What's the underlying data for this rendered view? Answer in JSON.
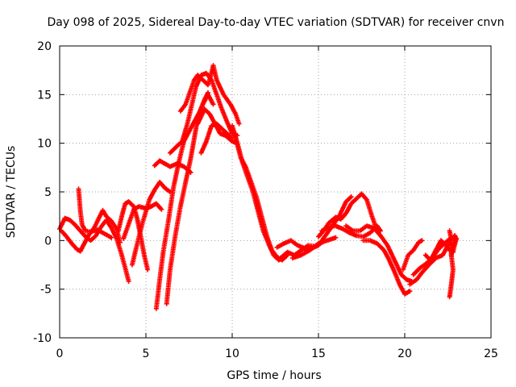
{
  "chart_data": {
    "type": "scatter",
    "title": "Day 098 of 2025, Sidereal Day-to-day VTEC variation (SDTVAR) for receiver cnvn",
    "xlabel": "GPS time / hours",
    "ylabel": "SDTVAR / TECUs",
    "xlim": [
      0,
      25
    ],
    "ylim": [
      -10,
      20
    ],
    "xticks": [
      "0",
      "5",
      "10",
      "15",
      "20",
      "25"
    ],
    "yticks": [
      "-10",
      "-5",
      "0",
      "5",
      "10",
      "15",
      "20"
    ],
    "grid": true,
    "marker": "+",
    "series": [
      {
        "name": "SDTVAR",
        "color": "#ff0000",
        "tracks": [
          [
            [
              0.0,
              1.2
            ],
            [
              0.3,
              2.3
            ],
            [
              0.6,
              2.1
            ],
            [
              0.9,
              1.6
            ],
            [
              1.2,
              1.0
            ],
            [
              1.5,
              0.4
            ],
            [
              1.8,
              0.0
            ],
            [
              2.1,
              0.5
            ],
            [
              2.4,
              1.4
            ],
            [
              2.7,
              2.1
            ],
            [
              3.0,
              1.3
            ],
            [
              3.3,
              0.2
            ],
            [
              3.6,
              -1.5
            ],
            [
              3.9,
              -3.5
            ],
            [
              4.0,
              -4.2
            ]
          ],
          [
            [
              0.1,
              1.0
            ],
            [
              0.4,
              0.4
            ],
            [
              0.7,
              -0.3
            ],
            [
              1.0,
              -0.9
            ],
            [
              1.2,
              -1.1
            ],
            [
              1.4,
              -0.4
            ],
            [
              1.7,
              0.6
            ],
            [
              2.0,
              1.3
            ],
            [
              2.3,
              2.4
            ],
            [
              2.5,
              3.1
            ],
            [
              2.7,
              2.5
            ],
            [
              3.0,
              2.0
            ],
            [
              3.3,
              1.2
            ],
            [
              3.5,
              -0.2
            ]
          ],
          [
            [
              1.1,
              5.3
            ],
            [
              1.2,
              3.0
            ],
            [
              1.3,
              1.6
            ],
            [
              1.5,
              1.0
            ],
            [
              1.8,
              0.9
            ],
            [
              2.2,
              1.1
            ],
            [
              2.6,
              0.7
            ],
            [
              3.0,
              0.3
            ]
          ],
          [
            [
              3.4,
              1.0
            ],
            [
              3.6,
              2.5
            ],
            [
              3.8,
              3.8
            ],
            [
              4.0,
              4.0
            ],
            [
              4.3,
              3.5
            ],
            [
              4.5,
              2.2
            ],
            [
              4.7,
              0.4
            ],
            [
              4.9,
              -1.5
            ],
            [
              5.1,
              -3.0
            ]
          ],
          [
            [
              3.7,
              0.2
            ],
            [
              4.0,
              1.7
            ],
            [
              4.3,
              3.2
            ],
            [
              4.6,
              3.5
            ],
            [
              5.0,
              3.3
            ],
            [
              5.3,
              3.5
            ],
            [
              5.6,
              3.8
            ],
            [
              5.9,
              3.2
            ]
          ],
          [
            [
              4.2,
              -2.5
            ],
            [
              4.5,
              -0.3
            ],
            [
              4.8,
              1.8
            ],
            [
              5.0,
              3.0
            ],
            [
              5.2,
              4.2
            ],
            [
              5.5,
              5.2
            ],
            [
              5.8,
              6.0
            ],
            [
              6.1,
              5.4
            ],
            [
              6.4,
              5.0
            ]
          ],
          [
            [
              5.6,
              -7.0
            ],
            [
              5.8,
              -4.0
            ],
            [
              6.0,
              -1.2
            ],
            [
              6.3,
              2.0
            ],
            [
              6.6,
              5.5
            ],
            [
              6.9,
              8.0
            ],
            [
              7.2,
              10.2
            ],
            [
              7.5,
              11.2
            ],
            [
              7.8,
              12.2
            ],
            [
              8.1,
              13.2
            ],
            [
              8.4,
              14.5
            ],
            [
              8.6,
              15.2
            ]
          ],
          [
            [
              6.2,
              -6.5
            ],
            [
              6.4,
              -3.0
            ],
            [
              6.7,
              0.5
            ],
            [
              7.0,
              3.5
            ],
            [
              7.3,
              6.0
            ],
            [
              7.6,
              8.5
            ],
            [
              7.8,
              10.5
            ],
            [
              8.0,
              12.5
            ],
            [
              8.3,
              14.0
            ],
            [
              8.6,
              15.0
            ],
            [
              8.9,
              14.0
            ]
          ],
          [
            [
              5.5,
              7.7
            ],
            [
              5.8,
              8.2
            ],
            [
              6.1,
              7.9
            ],
            [
              6.4,
              7.6
            ],
            [
              6.8,
              7.9
            ],
            [
              7.2,
              7.6
            ],
            [
              7.6,
              7.0
            ]
          ],
          [
            [
              6.4,
              9.0
            ],
            [
              6.8,
              9.7
            ],
            [
              7.1,
              10.2
            ],
            [
              7.4,
              12.0
            ],
            [
              7.6,
              13.5
            ],
            [
              7.9,
              15.8
            ],
            [
              8.2,
              17.0
            ],
            [
              8.5,
              17.2
            ],
            [
              8.8,
              16.5
            ],
            [
              9.1,
              15.0
            ],
            [
              9.4,
              13.5
            ],
            [
              9.7,
              12.2
            ],
            [
              10.0,
              11.0
            ],
            [
              10.3,
              10.8
            ]
          ],
          [
            [
              7.0,
              13.3
            ],
            [
              7.3,
              14.0
            ],
            [
              7.6,
              15.5
            ],
            [
              7.8,
              16.5
            ],
            [
              8.0,
              17.0
            ],
            [
              8.3,
              16.5
            ],
            [
              8.6,
              16.0
            ],
            [
              8.8,
              17.2
            ],
            [
              8.9,
              18.0
            ],
            [
              9.1,
              16.5
            ],
            [
              9.5,
              15.0
            ],
            [
              9.9,
              14.0
            ],
            [
              10.2,
              13.0
            ],
            [
              10.4,
              12.0
            ]
          ],
          [
            [
              8.0,
              12.0
            ],
            [
              8.4,
              13.5
            ],
            [
              8.7,
              13.0
            ],
            [
              9.0,
              12.0
            ],
            [
              9.3,
              11.0
            ],
            [
              9.6,
              10.8
            ],
            [
              10.0,
              10.2
            ],
            [
              10.3,
              10.0
            ]
          ],
          [
            [
              8.2,
              9.0
            ],
            [
              8.5,
              10.2
            ],
            [
              8.8,
              11.8
            ],
            [
              9.1,
              12.0
            ],
            [
              9.4,
              11.5
            ],
            [
              9.7,
              11.0
            ],
            [
              10.0,
              10.5
            ]
          ],
          [
            [
              10.0,
              11.8
            ],
            [
              10.3,
              10.0
            ],
            [
              10.6,
              8.0
            ],
            [
              10.9,
              6.5
            ],
            [
              11.2,
              5.0
            ],
            [
              11.5,
              3.0
            ],
            [
              11.8,
              1.0
            ],
            [
              12.1,
              -0.3
            ],
            [
              12.4,
              -1.5
            ],
            [
              12.7,
              -2.0
            ],
            [
              13.0,
              -1.8
            ]
          ],
          [
            [
              10.2,
              10.5
            ],
            [
              10.5,
              8.5
            ],
            [
              10.8,
              7.5
            ],
            [
              11.1,
              6.0
            ],
            [
              11.4,
              4.5
            ],
            [
              11.7,
              2.5
            ],
            [
              12.0,
              0.5
            ],
            [
              12.3,
              -1.0
            ],
            [
              12.6,
              -1.7
            ],
            [
              12.9,
              -2.0
            ],
            [
              13.2,
              -1.5
            ]
          ],
          [
            [
              12.6,
              -0.7
            ],
            [
              13.0,
              -0.3
            ],
            [
              13.4,
              0.0
            ],
            [
              13.8,
              -0.5
            ],
            [
              14.2,
              -0.8
            ]
          ],
          [
            [
              12.8,
              -1.8
            ],
            [
              13.2,
              -1.2
            ],
            [
              13.6,
              -1.5
            ],
            [
              14.0,
              -1.0
            ],
            [
              14.4,
              -0.5
            ],
            [
              14.8,
              -0.6
            ],
            [
              15.2,
              -0.2
            ]
          ],
          [
            [
              13.5,
              -1.8
            ],
            [
              14.0,
              -1.5
            ],
            [
              14.5,
              -1.0
            ],
            [
              15.0,
              -0.3
            ],
            [
              15.5,
              0.0
            ],
            [
              16.0,
              0.3
            ]
          ],
          [
            [
              14.2,
              -1.0
            ],
            [
              14.6,
              -0.8
            ],
            [
              15.0,
              -0.5
            ],
            [
              15.4,
              0.5
            ],
            [
              15.8,
              1.5
            ],
            [
              16.2,
              2.5
            ],
            [
              16.6,
              4.0
            ],
            [
              16.9,
              4.5
            ]
          ],
          [
            [
              15.0,
              0.4
            ],
            [
              15.3,
              1.0
            ],
            [
              15.6,
              1.8
            ],
            [
              16.0,
              2.4
            ],
            [
              16.3,
              2.2
            ],
            [
              16.6,
              2.8
            ],
            [
              16.9,
              3.8
            ],
            [
              17.2,
              4.3
            ],
            [
              17.5,
              4.8
            ],
            [
              17.8,
              4.2
            ],
            [
              18.1,
              2.5
            ],
            [
              18.4,
              1.0
            ]
          ],
          [
            [
              15.2,
              1.0
            ],
            [
              15.6,
              1.4
            ],
            [
              16.0,
              1.5
            ],
            [
              16.4,
              1.2
            ],
            [
              16.8,
              0.8
            ],
            [
              17.2,
              0.5
            ],
            [
              17.6,
              0.4
            ],
            [
              18.0,
              0.8
            ],
            [
              18.4,
              1.5
            ],
            [
              18.6,
              1.0
            ]
          ],
          [
            [
              16.6,
              1.5
            ],
            [
              17.0,
              1.0
            ],
            [
              17.4,
              1.0
            ],
            [
              17.8,
              1.5
            ],
            [
              18.2,
              1.3
            ],
            [
              18.6,
              0.5
            ],
            [
              19.0,
              -0.5
            ],
            [
              19.4,
              -2.0
            ],
            [
              19.8,
              -3.5
            ],
            [
              20.1,
              -4.0
            ],
            [
              20.4,
              -4.2
            ]
          ],
          [
            [
              17.6,
              0.0
            ],
            [
              18.0,
              0.0
            ],
            [
              18.4,
              -0.3
            ],
            [
              18.8,
              -1.0
            ],
            [
              19.1,
              -2.0
            ],
            [
              19.4,
              -3.2
            ],
            [
              19.7,
              -4.5
            ],
            [
              20.0,
              -5.5
            ],
            [
              20.3,
              -5.2
            ]
          ],
          [
            [
              19.9,
              -3.0
            ],
            [
              20.2,
              -1.5
            ],
            [
              20.5,
              -1.0
            ],
            [
              20.8,
              -0.2
            ],
            [
              21.0,
              0.0
            ]
          ],
          [
            [
              20.3,
              -4.5
            ],
            [
              20.7,
              -4.0
            ],
            [
              21.0,
              -3.3
            ],
            [
              21.4,
              -2.5
            ],
            [
              21.8,
              -1.8
            ],
            [
              22.2,
              -1.5
            ],
            [
              22.5,
              -0.5
            ],
            [
              22.7,
              -0.2
            ]
          ],
          [
            [
              20.5,
              -3.5
            ],
            [
              20.9,
              -2.8
            ],
            [
              21.3,
              -2.3
            ],
            [
              21.7,
              -1.5
            ],
            [
              22.0,
              -0.8
            ],
            [
              22.3,
              -0.3
            ],
            [
              22.5,
              0.0
            ],
            [
              22.8,
              0.3
            ],
            [
              22.9,
              0.5
            ]
          ],
          [
            [
              21.2,
              -1.5
            ],
            [
              21.5,
              -2.0
            ],
            [
              21.8,
              -1.0
            ],
            [
              22.1,
              0.0
            ],
            [
              22.4,
              -0.5
            ],
            [
              22.6,
              -1.0
            ]
          ],
          [
            [
              22.6,
              1.0
            ],
            [
              22.7,
              0.0
            ],
            [
              22.7,
              -1.5
            ],
            [
              22.8,
              -3.0
            ],
            [
              22.7,
              -4.5
            ],
            [
              22.6,
              -5.8
            ]
          ],
          [
            [
              22.7,
              -1.5
            ],
            [
              22.8,
              -0.5
            ],
            [
              22.9,
              0.0
            ],
            [
              22.9,
              0.5
            ],
            [
              23.0,
              0.2
            ],
            [
              22.9,
              -0.4
            ],
            [
              22.8,
              -1.2
            ]
          ]
        ]
      }
    ]
  }
}
